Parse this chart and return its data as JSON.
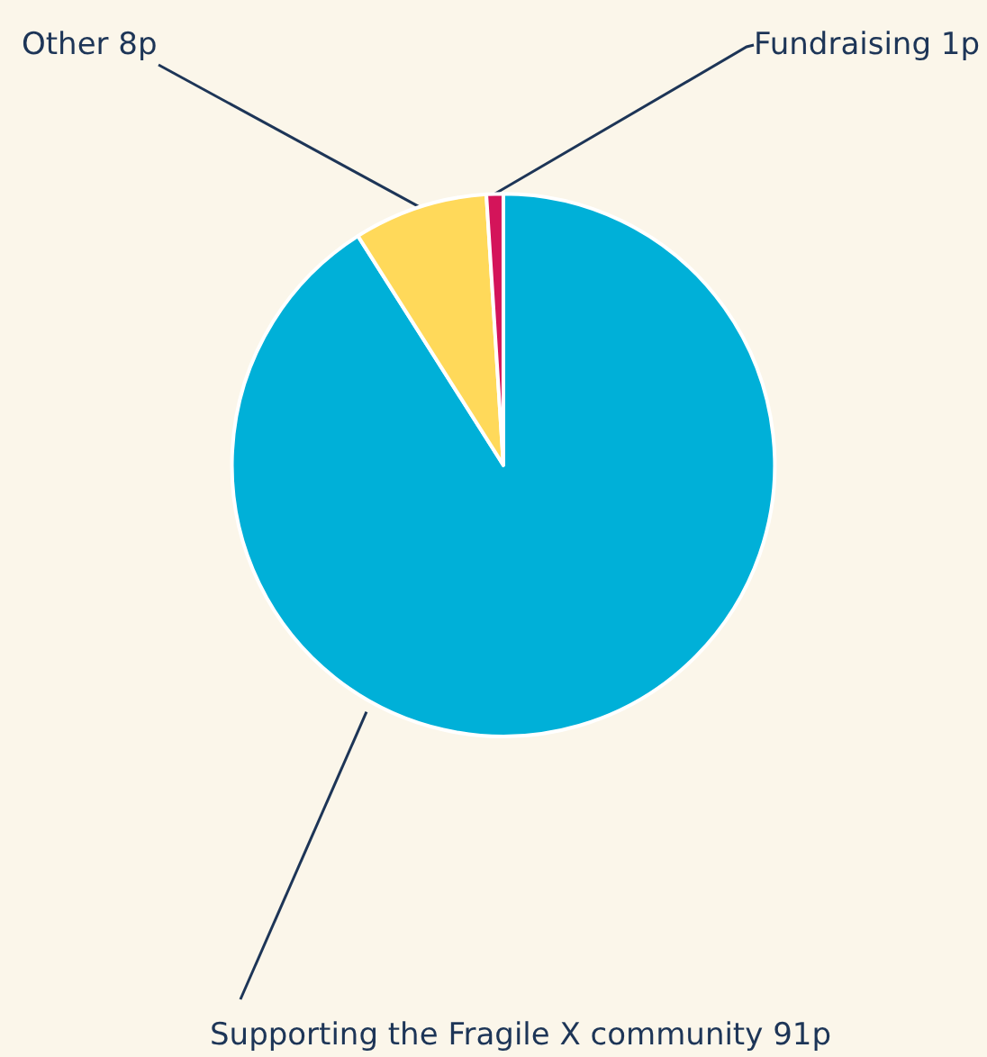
{
  "chart_data": {
    "type": "pie",
    "categories": [
      "Supporting the Fragile X community",
      "Other",
      "Fundraising"
    ],
    "values": [
      91,
      8,
      1
    ],
    "colors": [
      "#00b0d8",
      "#ffd95a",
      "#d4145a"
    ],
    "value_labels": [
      "91p",
      "8p",
      "1p"
    ]
  }
}
